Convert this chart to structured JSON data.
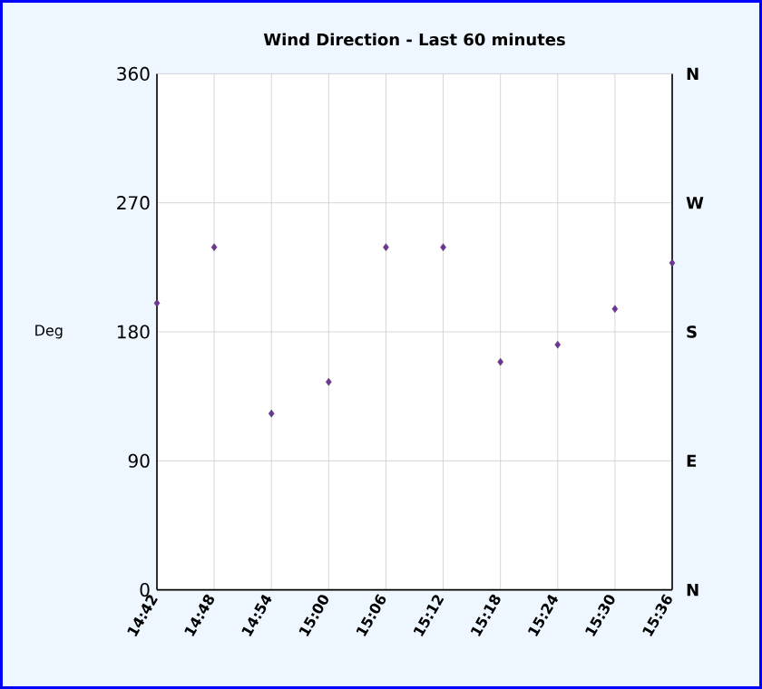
{
  "chart_data": {
    "type": "scatter",
    "title": "Wind Direction - Last 60 minutes",
    "ylabel": "Deg",
    "x": [
      14.7,
      14.8,
      14.9,
      15.0,
      15.1,
      15.2,
      15.3,
      15.4,
      15.5,
      15.6
    ],
    "values": [
      200,
      239,
      123,
      145,
      239,
      239,
      159,
      171,
      196,
      228
    ],
    "color": "#7030a0",
    "marker": "diamond",
    "xlim": [
      14.7,
      15.6
    ],
    "xticks": [
      {
        "value": 14.7,
        "label": "14:42"
      },
      {
        "value": 14.8,
        "label": "14:48"
      },
      {
        "value": 14.9,
        "label": "14:54"
      },
      {
        "value": 15.0,
        "label": "15:00"
      },
      {
        "value": 15.1,
        "label": "15:06"
      },
      {
        "value": 15.2,
        "label": "15:12"
      },
      {
        "value": 15.3,
        "label": "15:18"
      },
      {
        "value": 15.4,
        "label": "15:24"
      },
      {
        "value": 15.5,
        "label": "15:30"
      },
      {
        "value": 15.6,
        "label": "15:36"
      }
    ],
    "ylim": [
      0,
      360
    ],
    "yticks": [
      0,
      90,
      180,
      270,
      360
    ],
    "annotations": [
      "N",
      "W",
      "S",
      "E",
      "N"
    ],
    "grid": true
  }
}
